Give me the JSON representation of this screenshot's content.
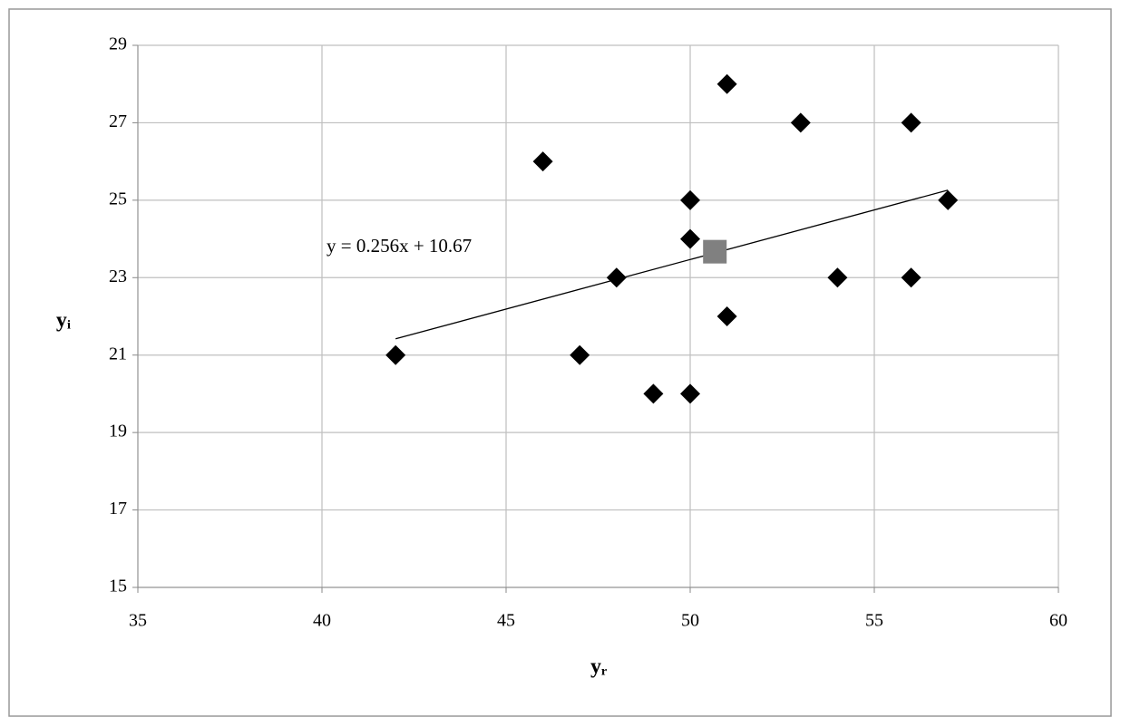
{
  "chart_data": {
    "type": "scatter",
    "xlabel": "yᵣ",
    "ylabel": "yᵢ",
    "xlim": [
      35,
      60
    ],
    "xticks": [
      35,
      40,
      45,
      50,
      55,
      60
    ],
    "ylim": [
      15,
      29
    ],
    "yticks": [
      15,
      17,
      19,
      21,
      23,
      25,
      27,
      29
    ],
    "grid": true,
    "series": [
      {
        "color": "#000000",
        "marker": "diamond",
        "x": [
          42,
          46,
          47,
          48,
          49,
          50,
          50,
          50,
          51,
          51,
          53,
          54,
          56,
          56,
          57
        ],
        "values": [
          21,
          26,
          21,
          23,
          20,
          20,
          25,
          24,
          28,
          22,
          27,
          23,
          27,
          23,
          25
        ]
      },
      {
        "color": "#808080",
        "marker": "square",
        "x": [
          50.67
        ],
        "values": [
          23.67
        ]
      }
    ],
    "trendline": {
      "label": "y = 0.256x + 10.67",
      "color": "#000000",
      "x": [
        42,
        57
      ],
      "values": [
        21.42,
        25.26
      ]
    }
  }
}
